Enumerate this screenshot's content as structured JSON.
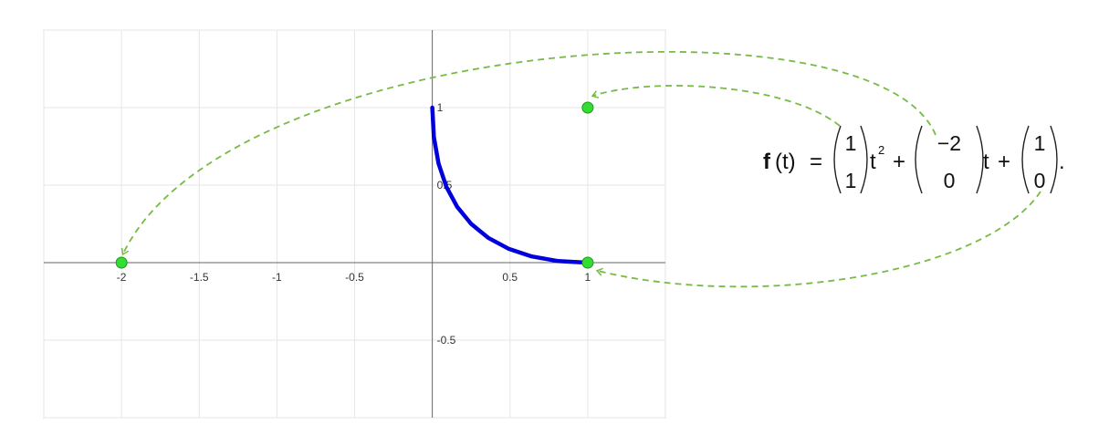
{
  "chart_data": {
    "type": "line",
    "title": "",
    "xlabel": "",
    "ylabel": "",
    "xlim": [
      -2.5,
      1.5
    ],
    "ylim": [
      -1.0,
      1.5
    ],
    "grid": true,
    "x_ticks": [
      {
        "value": -2,
        "label": "-2"
      },
      {
        "value": -1.5,
        "label": "-1.5"
      },
      {
        "value": -1,
        "label": "-1"
      },
      {
        "value": -0.5,
        "label": "-0.5"
      },
      {
        "value": 0.5,
        "label": "0.5"
      },
      {
        "value": 1,
        "label": "1"
      }
    ],
    "y_ticks": [
      {
        "value": 1,
        "label": "1"
      },
      {
        "value": 0.5,
        "label": "0.5"
      },
      {
        "value": -0.5,
        "label": "-0.5"
      }
    ],
    "series": [
      {
        "name": "f(t)",
        "color": "#0000dd",
        "parametric": "x = t^2 - 2t + 1, y = t^2, t in [0, 1]",
        "x": [
          1.0,
          0.81,
          0.64,
          0.49,
          0.36,
          0.25,
          0.16,
          0.09,
          0.04,
          0.01,
          0.0
        ],
        "y": [
          0.0,
          0.01,
          0.04,
          0.09,
          0.16,
          0.25,
          0.36,
          0.49,
          0.64,
          0.81,
          1.0
        ]
      }
    ],
    "points": [
      {
        "name": "t^2 coefficient",
        "x": 1,
        "y": 1,
        "color": "#33dd33"
      },
      {
        "name": "t coefficient",
        "x": -2,
        "y": 0,
        "color": "#33dd33"
      },
      {
        "name": "constant term",
        "x": 1,
        "y": 0,
        "color": "#33dd33"
      }
    ],
    "annotation_arrow_color": "#77bb44"
  },
  "formula": {
    "lhs_f": "f",
    "lhs_arg": "(t)",
    "equals": "=",
    "v1_top": "1",
    "v1_bottom": "1",
    "t_squared": "t",
    "squared_exp": "2",
    "plus1": "+",
    "v2_top": "−2",
    "v2_bottom": "0",
    "t_linear": "t",
    "plus2": "+",
    "v3_top": "1",
    "v3_bottom": "0",
    "period": "."
  }
}
